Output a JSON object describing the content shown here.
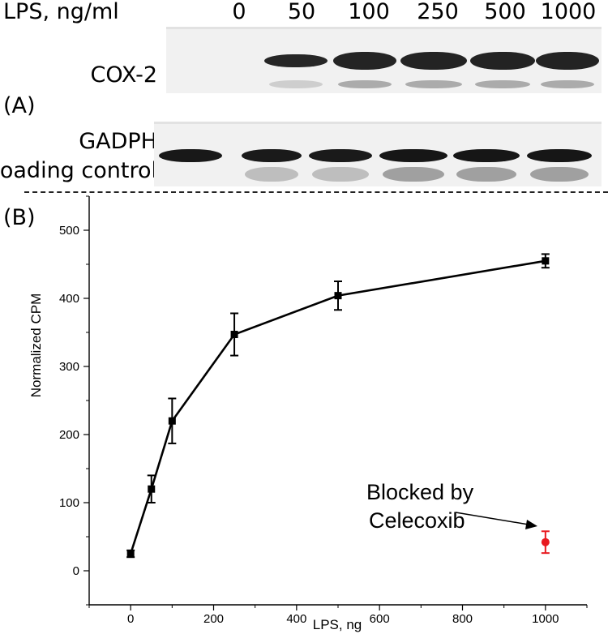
{
  "header": {
    "lps_label": "LPS, ng/ml",
    "concentrations": [
      "0",
      "50",
      "100",
      "250",
      "500",
      "1000"
    ]
  },
  "blot": {
    "panel_label": "(A)",
    "cox2_label": "COX-2",
    "gadph_label_line1": "GADPH",
    "gadph_label_line2": "loading control",
    "cox2_band_intensity": [
      0,
      0.85,
      0.9,
      0.95,
      0.95,
      0.95
    ],
    "gadph_band_intensity": [
      0.9,
      0.85,
      0.85,
      0.95,
      0.95,
      0.95
    ]
  },
  "chart_panel_label": "(B)",
  "chart_data": {
    "type": "line",
    "xlabel": "LPS, ng",
    "ylabel": "Normalized CPM",
    "xlim": [
      -100,
      1100
    ],
    "ylim": [
      -50,
      550
    ],
    "xticks": [
      0,
      200,
      400,
      600,
      800,
      1000
    ],
    "yticks": [
      0,
      100,
      200,
      300,
      400,
      500
    ],
    "series": [
      {
        "x": [
          0,
          50,
          100,
          250,
          500,
          1000
        ],
        "y": [
          25,
          120,
          220,
          347,
          404,
          455
        ],
        "err": [
          5,
          20,
          33,
          31,
          21,
          10
        ],
        "color": "#000000",
        "marker": "square"
      },
      {
        "x": [
          1000
        ],
        "y": [
          42
        ],
        "err": [
          16
        ],
        "color": "#e8191f",
        "marker": "circle"
      }
    ],
    "annotation": {
      "text_line1": "Blocked by",
      "text_line2": "Celecoxib"
    }
  }
}
